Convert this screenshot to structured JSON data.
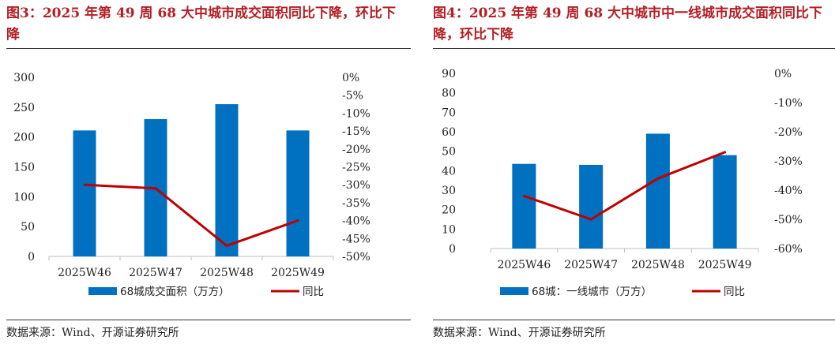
{
  "colors": {
    "bar": "#0070c0",
    "line": "#c00000",
    "title": "#b31f24"
  },
  "charts": [
    {
      "title": "图3：2025 年第 49 周 68 大中城市成交面积同比下降，环比下降",
      "source": "数据来源：Wind、开源证券研究所",
      "chart_data": {
        "type": "bar",
        "categories": [
          "2025W46",
          "2025W47",
          "2025W48",
          "2025W49"
        ],
        "series": [
          {
            "name": "68城成交面积（万方）",
            "type": "bar",
            "axis": "left",
            "values": [
              211,
              230,
              255,
              211
            ]
          },
          {
            "name": "同比",
            "type": "line",
            "axis": "right",
            "values": [
              -0.3,
              -0.31,
              -0.47,
              -0.4
            ]
          }
        ],
        "ylim": [
          0,
          300
        ],
        "yticks": [
          0,
          50,
          100,
          150,
          200,
          250,
          300
        ],
        "ytick_labels": [
          "0",
          "50",
          "100",
          "150",
          "200",
          "250",
          "300"
        ],
        "y2lim": [
          -0.5,
          0
        ],
        "y2ticks": [
          0,
          -0.05,
          -0.1,
          -0.15,
          -0.2,
          -0.25,
          -0.3,
          -0.35,
          -0.4,
          -0.45,
          -0.5
        ],
        "y2tick_labels": [
          "0%",
          "-5%",
          "-10%",
          "-15%",
          "-20%",
          "-25%",
          "-30%",
          "-35%",
          "-40%",
          "-45%",
          "-50%"
        ],
        "legend_position": "bottom",
        "grid": false
      }
    },
    {
      "title": "图4：2025 年第 49 周 68 大中城市中一线城市成交面积同比下降，环比下降",
      "source": "数据来源：Wind、开源证券研究所",
      "chart_data": {
        "type": "bar",
        "categories": [
          "2025W46",
          "2025W47",
          "2025W48",
          "2025W49"
        ],
        "series": [
          {
            "name": "68城：一线城市（万方）",
            "type": "bar",
            "axis": "left",
            "values": [
              43.5,
              43,
              59,
              48
            ]
          },
          {
            "name": "同比",
            "type": "line",
            "axis": "right",
            "values": [
              -0.42,
              -0.5,
              -0.36,
              -0.27
            ]
          }
        ],
        "ylim": [
          0,
          90
        ],
        "yticks": [
          0,
          10,
          20,
          30,
          40,
          50,
          60,
          70,
          80,
          90
        ],
        "ytick_labels": [
          "0",
          "10",
          "20",
          "30",
          "40",
          "50",
          "60",
          "70",
          "80",
          "90"
        ],
        "y2lim": [
          -0.6,
          0
        ],
        "y2ticks": [
          0,
          -0.1,
          -0.2,
          -0.3,
          -0.4,
          -0.5,
          -0.6
        ],
        "y2tick_labels": [
          "0%",
          "-10%",
          "-20%",
          "-30%",
          "-40%",
          "-50%",
          "-60%"
        ],
        "legend_position": "bottom",
        "grid": false
      }
    }
  ]
}
